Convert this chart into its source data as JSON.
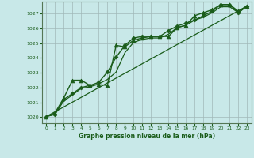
{
  "title": "Graphe pression niveau de la mer (hPa)",
  "background_color": "#c8e8e8",
  "grid_color": "#a0b8b8",
  "line_color": "#1a5c1a",
  "xlim": [
    -0.5,
    23.5
  ],
  "ylim": [
    1019.6,
    1027.8
  ],
  "yticks": [
    1020,
    1021,
    1022,
    1023,
    1024,
    1025,
    1026,
    1027
  ],
  "xticks": [
    0,
    1,
    2,
    3,
    4,
    5,
    6,
    7,
    8,
    9,
    10,
    11,
    12,
    13,
    14,
    15,
    16,
    17,
    18,
    19,
    20,
    21,
    22,
    23
  ],
  "series": [
    {
      "x": [
        0,
        1,
        2,
        3,
        4,
        5,
        6,
        7,
        8,
        9,
        10,
        11,
        12,
        13,
        14,
        15,
        16,
        17,
        18,
        19,
        20,
        21,
        22,
        23
      ],
      "y": [
        1020.05,
        1020.2,
        1021.2,
        1021.6,
        1022.0,
        1022.15,
        1022.35,
        1023.05,
        1024.05,
        1024.85,
        1025.35,
        1025.45,
        1025.45,
        1025.45,
        1025.85,
        1026.15,
        1026.35,
        1026.55,
        1026.85,
        1027.15,
        1027.6,
        1027.6,
        1027.05,
        1027.5
      ],
      "marker": "D",
      "markersize": 2.5,
      "linewidth": 1.0
    },
    {
      "x": [
        0,
        1,
        2,
        3,
        4,
        5,
        6,
        7,
        8,
        9,
        10,
        11,
        12,
        13,
        14,
        15,
        16,
        17,
        18,
        19,
        20,
        21,
        22,
        23
      ],
      "y": [
        1020.05,
        1020.3,
        1021.3,
        1022.5,
        1022.5,
        1022.15,
        1022.2,
        1022.15,
        1024.85,
        1024.75,
        1025.2,
        1025.35,
        1025.45,
        1025.45,
        1025.45,
        1026.05,
        1026.2,
        1026.85,
        1027.05,
        1027.25,
        1027.6,
        1027.6,
        1027.15,
        1027.5
      ],
      "marker": "^",
      "markersize": 3.5,
      "linewidth": 1.0
    },
    {
      "x": [
        0,
        23
      ],
      "y": [
        1020.05,
        1027.5
      ],
      "marker": null,
      "markersize": 0,
      "linewidth": 0.9
    },
    {
      "x": [
        0,
        1,
        2,
        3,
        4,
        5,
        6,
        7,
        8,
        9,
        10,
        11,
        12,
        13,
        14,
        15,
        16,
        17,
        18,
        19,
        20,
        21,
        22,
        23
      ],
      "y": [
        1020.05,
        1020.2,
        1021.1,
        1021.5,
        1021.95,
        1022.05,
        1022.25,
        1022.55,
        1023.05,
        1024.35,
        1025.05,
        1025.25,
        1025.35,
        1025.35,
        1025.6,
        1026.05,
        1026.2,
        1026.55,
        1026.75,
        1027.05,
        1027.45,
        1027.45,
        1027.05,
        1027.5
      ],
      "marker": null,
      "markersize": 0,
      "linewidth": 0.9
    }
  ]
}
